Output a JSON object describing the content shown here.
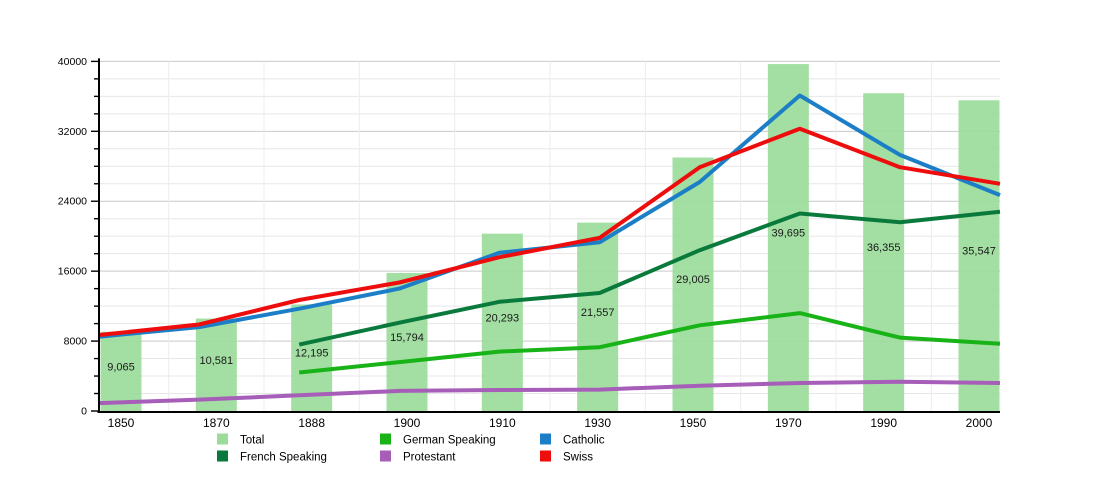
{
  "chart_data": {
    "type": "bar+line",
    "categories": [
      "1850",
      "1870",
      "1888",
      "1900",
      "1910",
      "1930",
      "1950",
      "1970",
      "1990",
      "2000"
    ],
    "bar_series": {
      "name": "Total",
      "color": "#9BDC9B",
      "values": [
        9065,
        10581,
        12195,
        15794,
        20293,
        21557,
        29005,
        39695,
        36355,
        35547
      ],
      "labels": [
        "9,065",
        "10,581",
        "12,195",
        "15,794",
        "20,293",
        "21,557",
        "29,005",
        "39,695",
        "36,355",
        "35,547"
      ]
    },
    "line_series": [
      {
        "name": "German Speaking",
        "color": "#17B317",
        "values": [
          null,
          null,
          4400,
          5600,
          6800,
          7300,
          9800,
          11200,
          8400,
          7700
        ]
      },
      {
        "name": "Catholic",
        "color": "#1B7EC7",
        "values": [
          8500,
          9600,
          11700,
          14000,
          18100,
          19300,
          26200,
          36100,
          29300,
          24700
        ]
      },
      {
        "name": "French Speaking",
        "color": "#0A7A3C",
        "values": [
          null,
          null,
          7600,
          10100,
          12500,
          13500,
          18400,
          22600,
          21600,
          22800
        ]
      },
      {
        "name": "Protestant",
        "color": "#A65EB8",
        "values": [
          900,
          1300,
          1800,
          2300,
          2400,
          2450,
          2900,
          3200,
          3350,
          3200
        ]
      },
      {
        "name": "Swiss",
        "color": "#EE0D0D",
        "values": [
          8700,
          9900,
          12700,
          14700,
          17600,
          19800,
          27900,
          32300,
          27900,
          26000
        ]
      }
    ],
    "ylim": [
      0,
      40000
    ],
    "ytick_step": 8000,
    "yminor_step": 2000,
    "ytick_labels": [
      "0",
      "8000",
      "16000",
      "24000",
      "32000",
      "40000"
    ],
    "grid": true,
    "legend_position": "bottom",
    "legend": [
      {
        "label": "Total",
        "color": "#9BDC9B"
      },
      {
        "label": "German Speaking",
        "color": "#17B317"
      },
      {
        "label": "Catholic",
        "color": "#1B7EC7"
      },
      {
        "label": "French Speaking",
        "color": "#0A7A3C"
      },
      {
        "label": "Protestant",
        "color": "#A65EB8"
      },
      {
        "label": "Swiss",
        "color": "#EE0D0D"
      }
    ]
  }
}
